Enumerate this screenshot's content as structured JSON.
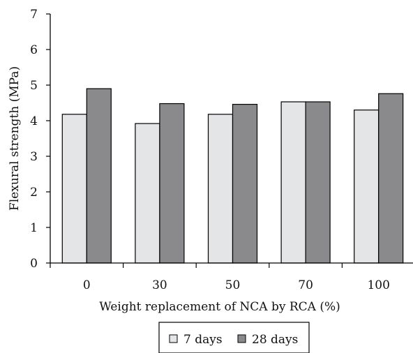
{
  "chart_data": {
    "type": "bar",
    "categories": [
      "0",
      "30",
      "50",
      "70",
      "100"
    ],
    "series": [
      {
        "name": "7 days",
        "values": [
          4.18,
          3.92,
          4.18,
          4.53,
          4.3
        ],
        "color": "#e4e5e7"
      },
      {
        "name": "28 days",
        "values": [
          4.9,
          4.48,
          4.46,
          4.53,
          4.76
        ],
        "color": "#8a8a8c"
      }
    ],
    "title": "",
    "xlabel": "Weight replacement of NCA by RCA (%)",
    "ylabel": "Flexural strength (MPa)",
    "ylim": [
      0,
      7
    ],
    "yticks": [
      "0",
      "1",
      "2",
      "3",
      "4",
      "5",
      "6",
      "7"
    ],
    "grid": false,
    "legend": {
      "position": "bottom-center",
      "box": true
    }
  }
}
